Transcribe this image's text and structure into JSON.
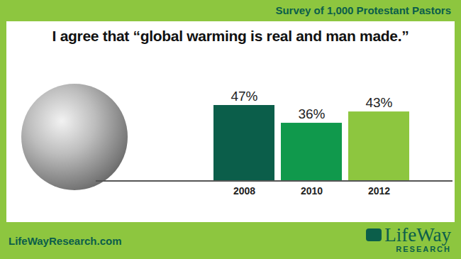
{
  "chart_data": {
    "type": "bar",
    "title": "I agree that “global warming is real and man made.”",
    "subtitle": "Survey of 1,000 Protestant Pastors",
    "categories": [
      "2008",
      "2010",
      "2012"
    ],
    "values": [
      47,
      36,
      43
    ],
    "value_labels": [
      "47%",
      "36%",
      "43%"
    ],
    "colors": [
      "#0b5e4a",
      "#10994c",
      "#8dc63f"
    ],
    "data_labels": true,
    "tick_labels": "x",
    "annotations": [
      "LifeWayResearch.com",
      "LifeWay",
      "RESEARCH"
    ]
  }
}
